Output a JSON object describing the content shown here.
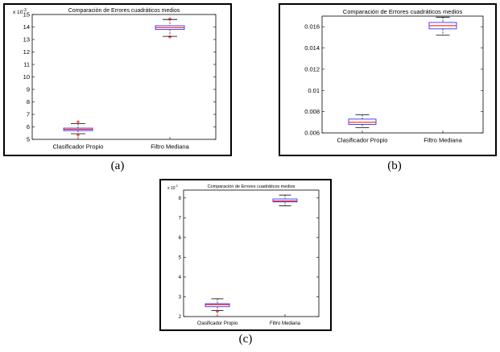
{
  "chart_data": [
    {
      "type": "box",
      "title": "Comparación de Errores cuadráticos medios",
      "categories": [
        "Clasificador Propio",
        "Filtro Mediana"
      ],
      "y_multiplier": "x 10",
      "y_multiplier_exp": "-3",
      "ylim": [
        5,
        15
      ],
      "yticks": [
        "5",
        "6",
        "7",
        "8",
        "9",
        "10",
        "11",
        "12",
        "13",
        "14",
        "15"
      ],
      "ytick_values": [
        5,
        6,
        7,
        8,
        9,
        10,
        11,
        12,
        13,
        14,
        15
      ],
      "boxes": [
        {
          "min": 5.45,
          "q1": 5.7,
          "median": 5.8,
          "q3": 5.9,
          "max": 6.25,
          "outliers": [
            5.35,
            6.4
          ]
        },
        {
          "min": 13.25,
          "q1": 13.8,
          "median": 13.95,
          "q3": 14.1,
          "max": 14.6,
          "outliers": [
            13.2,
            14.65
          ]
        }
      ],
      "caption": "(a)"
    },
    {
      "type": "box",
      "title": "Comparación de Errores cuadráticos medios",
      "categories": [
        "Clasificador Propio",
        "Filtro Mediana"
      ],
      "y_multiplier": "",
      "y_multiplier_exp": "",
      "ylim": [
        0.006,
        0.017
      ],
      "yticks": [
        "0.006",
        "0.008",
        "0.01",
        "0.012",
        "0.014",
        "0.016"
      ],
      "ytick_values": [
        0.006,
        0.008,
        0.01,
        0.012,
        0.014,
        0.016
      ],
      "boxes": [
        {
          "min": 0.0065,
          "q1": 0.0068,
          "median": 0.007,
          "q3": 0.0073,
          "max": 0.0077,
          "outliers": []
        },
        {
          "min": 0.0152,
          "q1": 0.0158,
          "median": 0.0161,
          "q3": 0.0164,
          "max": 0.0169,
          "outliers": []
        }
      ],
      "caption": "(b)"
    },
    {
      "type": "box",
      "title": "Comparación de Errores cuadráticos medios",
      "categories": [
        "Clasificador Propio",
        "Filtro Mediana"
      ],
      "y_multiplier": "x 10",
      "y_multiplier_exp": "-3",
      "ylim": [
        2,
        8.4
      ],
      "yticks": [
        "2",
        "3",
        "4",
        "5",
        "6",
        "7",
        "8"
      ],
      "ytick_values": [
        2,
        3,
        4,
        5,
        6,
        7,
        8
      ],
      "boxes": [
        {
          "min": 2.3,
          "q1": 2.5,
          "median": 2.6,
          "q3": 2.65,
          "max": 2.9,
          "outliers": [
            2.25
          ]
        },
        {
          "min": 7.6,
          "q1": 7.8,
          "median": 7.85,
          "q3": 7.95,
          "max": 8.15,
          "outliers": []
        }
      ],
      "caption": "(c)"
    }
  ],
  "colors": {
    "box": "#3333ff",
    "median": "#ff0000",
    "whisker": "#000000",
    "outlier": "#ff0000"
  }
}
